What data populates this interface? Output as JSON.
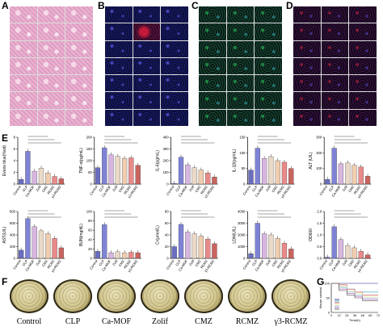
{
  "panel_labels": {
    "A": "A",
    "B": "B",
    "C": "C",
    "D": "D",
    "E": "E",
    "F": "F",
    "G": "G"
  },
  "groups": [
    "Control",
    "CLP",
    "Ca-MOF",
    "Zolif",
    "CMZ",
    "RCMZ",
    "γ3-RCMZ"
  ],
  "colors": {
    "bars": [
      "#6a6ec0",
      "#7f83d6",
      "#d8b6e0",
      "#ead9c8",
      "#f0cdb0",
      "#e98a8a",
      "#c9645f"
    ],
    "line_colors": [
      "#1f1f7a",
      "#2aa0c8",
      "#c44",
      "#ee8",
      "#7ac",
      "#a5a",
      "#555"
    ]
  },
  "chart_data": [
    {
      "type": "bar",
      "ylabel": "Evans blue(%od)",
      "ymax": 8,
      "yticks": [
        "0",
        "2",
        "4",
        "6",
        "8"
      ],
      "categories": [
        "Control",
        "CLP",
        "Ca-MOF",
        "Zolif",
        "CMZ",
        "RCMZ",
        "γ3-RCMZ"
      ],
      "values": [
        0.8,
        5.6,
        2.2,
        2.7,
        1.9,
        1.3,
        0.9
      ]
    },
    {
      "type": "bar",
      "ylabel": "TNF-α(pg/mL)",
      "ymax": 200,
      "yticks": [
        "0",
        "50",
        "100",
        "150",
        "200"
      ],
      "categories": [
        "Control",
        "CLP",
        "Ca-MOF",
        "Zolif",
        "CMZ",
        "RCMZ",
        "γ3-RCMZ"
      ],
      "values": [
        70,
        155,
        125,
        118,
        110,
        112,
        80
      ]
    },
    {
      "type": "bar",
      "ylabel": "IL-6(pg/mL)",
      "ymax": 400,
      "yticks": [
        "0",
        "100",
        "200",
        "300",
        "400"
      ],
      "categories": [
        "Control",
        "CLP",
        "Ca-MOF",
        "Zolif",
        "CMZ",
        "RCMZ",
        "γ3-RCMZ"
      ],
      "values": [
        5,
        230,
        165,
        140,
        120,
        95,
        60
      ]
    },
    {
      "type": "bar",
      "ylabel": "IL-1β(pg/mL)",
      "ymax": 150,
      "yticks": [
        "0",
        "50",
        "100",
        "150"
      ],
      "categories": [
        "Control",
        "CLP",
        "Ca-MOF",
        "Zolif",
        "CMZ",
        "RCMZ",
        "γ3-RCMZ"
      ],
      "values": [
        45,
        115,
        82,
        88,
        75,
        70,
        50
      ]
    },
    {
      "type": "bar",
      "ylabel": "ALT (U/L)",
      "ymax": 300,
      "yticks": [
        "0",
        "100",
        "200",
        "300"
      ],
      "categories": [
        "Control",
        "CLP",
        "Ca-MOF",
        "Zolif",
        "CMZ",
        "RCMZ",
        "γ3-RCMZ"
      ],
      "values": [
        30,
        230,
        130,
        135,
        120,
        110,
        50
      ]
    },
    {
      "type": "bar",
      "ylabel": "AST(U/L)",
      "ymax": 800,
      "yticks": [
        "0",
        "200",
        "400",
        "600",
        "800"
      ],
      "categories": [
        "Control",
        "CLP",
        "Ca-MOF",
        "Zolif",
        "CMZ",
        "RCMZ",
        "γ3-RCMZ"
      ],
      "values": [
        140,
        680,
        540,
        470,
        420,
        340,
        180
      ]
    },
    {
      "type": "bar",
      "ylabel": "BUN(mg/dL)",
      "ymax": 100,
      "yticks": [
        "0",
        "20",
        "40",
        "60",
        "80",
        "100"
      ],
      "categories": [
        "Control",
        "CLP",
        "Ca-MOF",
        "Zolif",
        "CMZ",
        "RCMZ",
        "γ3-RCMZ"
      ],
      "values": [
        15,
        72,
        12,
        14,
        12,
        13,
        12
      ]
    },
    {
      "type": "bar",
      "ylabel": "Cr(μmol/L)",
      "ymax": 80,
      "yticks": [
        "0",
        "20",
        "40",
        "60",
        "80"
      ],
      "categories": [
        "Control",
        "CLP",
        "Ca-MOF",
        "Zolif",
        "CMZ",
        "RCMZ",
        "γ3-RCMZ"
      ],
      "values": [
        20,
        58,
        45,
        42,
        38,
        33,
        25
      ]
    },
    {
      "type": "bar",
      "ylabel": "LDH(U/L)",
      "ymax": 4000,
      "yticks": [
        "0",
        "1000",
        "2000",
        "3000",
        "4000"
      ],
      "categories": [
        "Control",
        "CLP",
        "Ca-MOF",
        "Zolif",
        "CMZ",
        "RCMZ",
        "γ3-RCMZ"
      ],
      "values": [
        400,
        3000,
        2100,
        2000,
        1700,
        1300,
        800
      ]
    },
    {
      "type": "bar",
      "ylabel": "OD600",
      "ymax": 2.0,
      "yticks": [
        "0.0",
        "0.5",
        "1.0",
        "1.5",
        "2.0"
      ],
      "categories": [
        "Control",
        "CLP",
        "Ca-MOF",
        "Zolif",
        "CMZ",
        "RCMZ",
        "γ3-RCMZ"
      ],
      "values": [
        0.05,
        1.35,
        0.8,
        0.55,
        0.45,
        0.3,
        0.15
      ]
    },
    {
      "type": "line",
      "ylabel": "Mouse survival",
      "xlabel": "Time(h)",
      "xticks": [
        "0",
        "12",
        "24",
        "36",
        "48",
        "60",
        "72"
      ],
      "yticks": [
        "0",
        "50",
        "100"
      ],
      "series": [
        {
          "values": [
            100,
            100,
            100,
            100,
            100,
            100,
            100
          ]
        },
        {
          "values": [
            100,
            90,
            80,
            70,
            70,
            70,
            70
          ]
        },
        {
          "values": [
            100,
            95,
            80,
            70,
            60,
            60,
            60
          ]
        },
        {
          "values": [
            100,
            90,
            75,
            65,
            55,
            55,
            55
          ]
        },
        {
          "values": [
            100,
            85,
            70,
            60,
            50,
            50,
            50
          ]
        },
        {
          "values": [
            100,
            80,
            65,
            55,
            45,
            45,
            45
          ]
        },
        {
          "values": [
            100,
            75,
            60,
            50,
            40,
            40,
            40
          ]
        }
      ]
    }
  ]
}
